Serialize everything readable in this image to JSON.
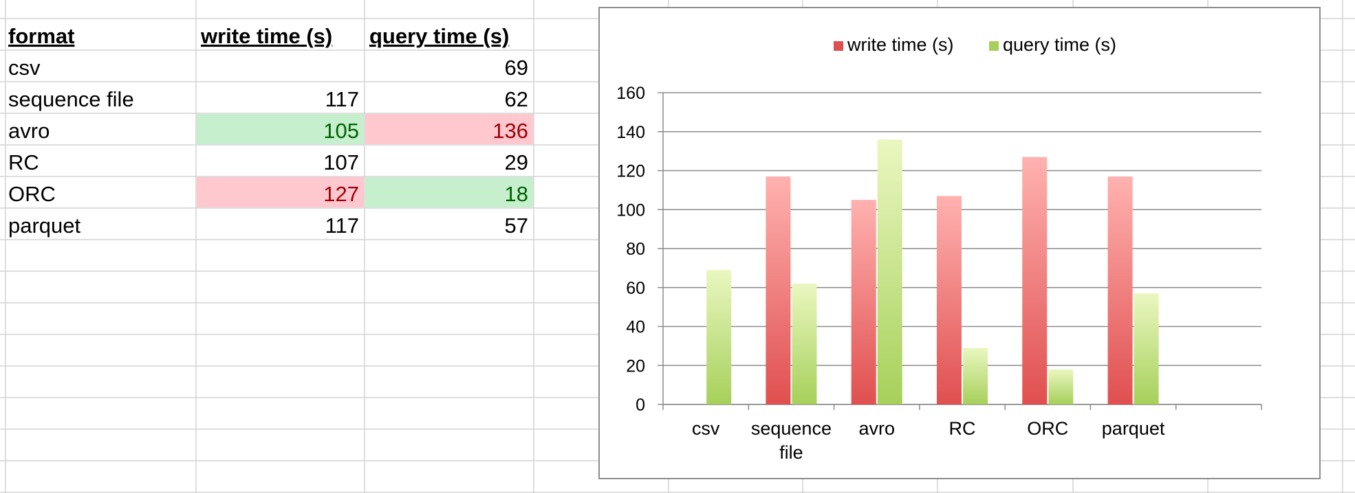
{
  "table": {
    "headers": [
      "format",
      "write time (s)",
      "query time (s)"
    ],
    "rows": [
      {
        "format": "csv",
        "write": "",
        "query": "69"
      },
      {
        "format": "sequence file",
        "write": "117",
        "query": "62"
      },
      {
        "format": "avro",
        "write": "105",
        "query": "136"
      },
      {
        "format": "RC",
        "write": "107",
        "query": "29"
      },
      {
        "format": "ORC",
        "write": "127",
        "query": "18"
      },
      {
        "format": "parquet",
        "write": "117",
        "query": "57"
      }
    ],
    "highlight": {
      "min_fill": "#c6efce",
      "min_text": "#006100",
      "max_fill": "#ffc7ce",
      "max_text": "#9c0006"
    }
  },
  "chart_data": {
    "type": "bar",
    "categories": [
      "csv",
      "sequence file",
      "avro",
      "RC",
      "ORC",
      "parquet"
    ],
    "series": [
      {
        "name": "write time (s)",
        "values": [
          null,
          117,
          105,
          107,
          127,
          117
        ],
        "color": "#e04f4f"
      },
      {
        "name": "query time (s)",
        "values": [
          69,
          62,
          136,
          29,
          18,
          57
        ],
        "color": "#a6d05a"
      }
    ],
    "ylim": [
      0,
      160
    ],
    "yticks": [
      "0",
      "20",
      "40",
      "60",
      "80",
      "100",
      "120",
      "140",
      "160"
    ],
    "grid": true,
    "legend": "top"
  }
}
